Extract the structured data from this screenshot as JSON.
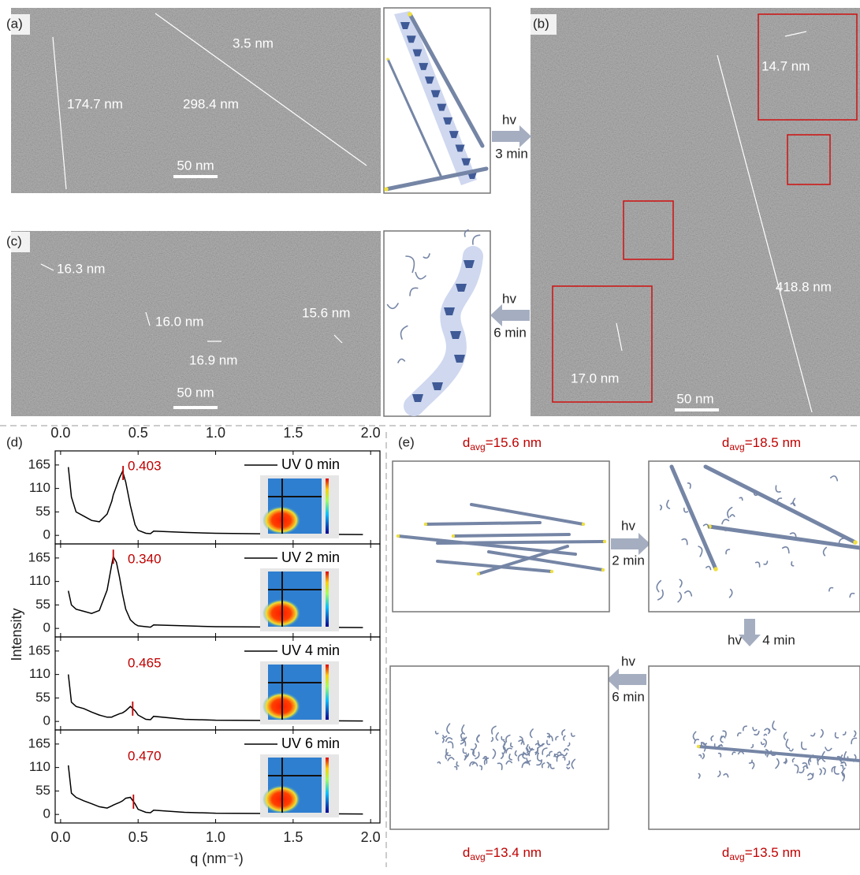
{
  "panels": {
    "a": {
      "label": "(a)",
      "measurements": [
        "3.5 nm",
        "174.7 nm",
        "298.4 nm"
      ],
      "scale_bar": "50 nm"
    },
    "b": {
      "label": "(b)",
      "measurements": [
        "14.7 nm",
        "418.8 nm",
        "17.0 nm"
      ],
      "scale_bar": "50 nm"
    },
    "c": {
      "label": "(c)",
      "measurements": [
        "16.3 nm",
        "16.0 nm",
        "16.9 nm",
        "15.6 nm"
      ],
      "scale_bar": "50 nm"
    },
    "d": {
      "label": "(d)"
    },
    "e": {
      "label": "(e)",
      "states": [
        {
          "symbol": "d",
          "subscript": "avg",
          "value": "=15.6 nm"
        },
        {
          "symbol": "d",
          "subscript": "avg",
          "value": "=18.5 nm"
        },
        {
          "symbol": "d",
          "subscript": "avg",
          "value": "=13.4 nm"
        },
        {
          "symbol": "d",
          "subscript": "avg",
          "value": "=13.5 nm"
        }
      ]
    }
  },
  "arrows": [
    {
      "symbol": "hv",
      "time": "3 min"
    },
    {
      "symbol": "hv",
      "time": "6 min"
    },
    {
      "symbol": "hv",
      "time": "2 min"
    },
    {
      "symbol": "hv",
      "time": "4 min"
    },
    {
      "symbol": "hv",
      "time": "6 min"
    }
  ],
  "chart_data": {
    "type": "line",
    "xlabel": "q (nm⁻¹)",
    "ylabel": "Intensity",
    "xlim": [
      -0.035,
      2.06
    ],
    "ylim": [
      -20,
      198
    ],
    "xticks": [
      {
        "value": 0,
        "label": "0.0"
      },
      0.5,
      {
        "value": 1,
        "label": "1.0"
      },
      1.5,
      {
        "value": 2,
        "label": "2.0"
      }
    ],
    "yticks": [
      0,
      55,
      110,
      165
    ],
    "x": [
      0.05,
      0.07,
      0.1,
      0.15,
      0.2,
      0.25,
      0.3,
      0.33,
      0.34,
      0.36,
      0.38,
      0.4,
      0.42,
      0.45,
      0.48,
      0.5,
      0.55,
      0.58,
      0.6,
      0.8,
      1.0,
      1.5,
      1.95
    ],
    "series": [
      {
        "name": "UV 0 min",
        "color": "#000000",
        "values": [
          160,
          90,
          55,
          45,
          35,
          32,
          50,
          80,
          95,
          115,
          135,
          150,
          125,
          70,
          25,
          12,
          5,
          4,
          10,
          7,
          5,
          3,
          2
        ],
        "peak": 0.403,
        "peak_color": "#c00000"
      },
      {
        "name": "UV 2 min",
        "color": "#000000",
        "values": [
          88,
          55,
          45,
          40,
          35,
          42,
          90,
          150,
          168,
          155,
          120,
          80,
          45,
          20,
          10,
          6,
          4,
          3,
          8,
          6,
          4,
          3,
          2
        ],
        "peak": {
          "value": 0.34,
          "label": "0.340"
        },
        "peak_color": "#c00000"
      },
      {
        "name": "UV 4 min",
        "color": "#000000",
        "values": [
          110,
          45,
          35,
          30,
          22,
          15,
          10,
          10,
          12,
          15,
          18,
          20,
          25,
          35,
          25,
          15,
          5,
          4,
          12,
          5,
          3,
          2,
          1
        ],
        "peak": 0.465,
        "peak_color": "#c00000"
      },
      {
        "name": "UV 6 min",
        "color": "#000000",
        "values": [
          115,
          50,
          40,
          32,
          25,
          18,
          15,
          20,
          22,
          25,
          28,
          32,
          38,
          40,
          25,
          12,
          5,
          4,
          10,
          5,
          3,
          2,
          1
        ],
        "peak": {
          "value": 0.47,
          "label": "0.470"
        },
        "peak_color": "#c00000"
      }
    ]
  }
}
